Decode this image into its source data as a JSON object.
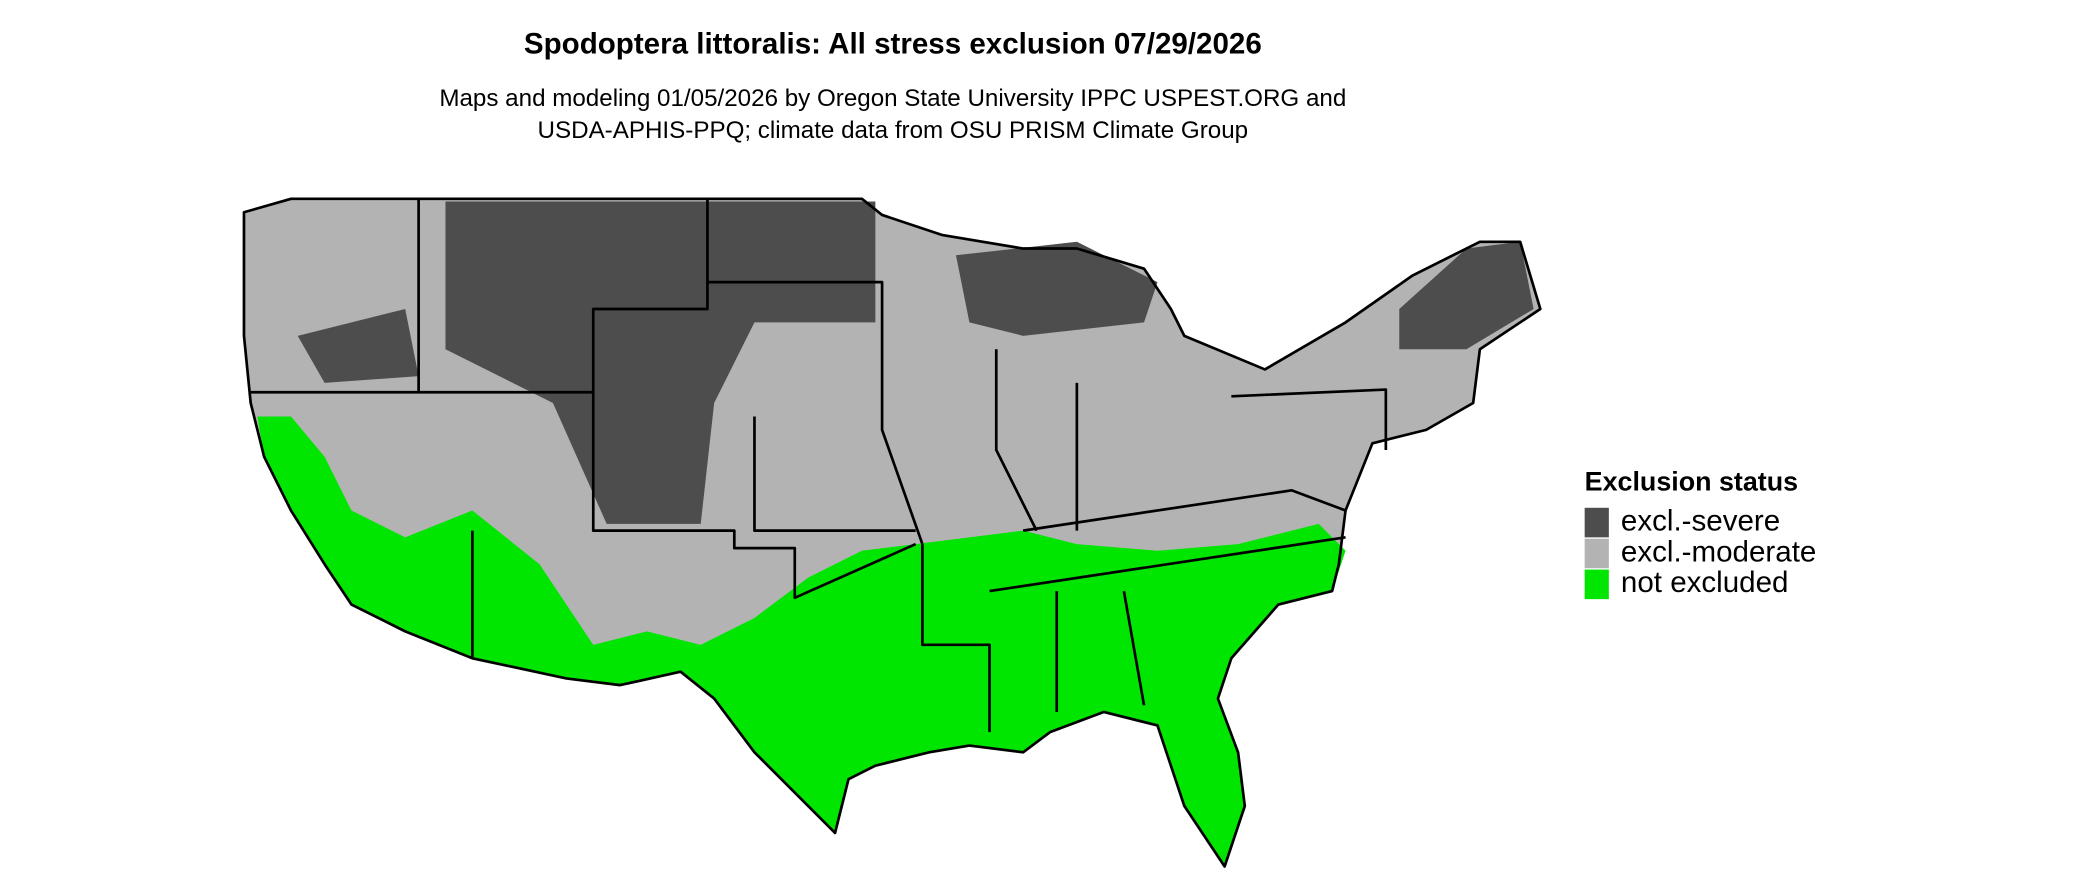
{
  "title": "Spodoptera littoralis: All stress exclusion 07/29/2026",
  "subtitle_lines": [
    "Maps and modeling 01/05/2026 by Oregon State University IPPC USPEST.ORG and",
    "USDA-APHIS-PPQ; climate data from OSU PRISM Climate Group"
  ],
  "legend": {
    "title": "Exclusion status",
    "entries": [
      {
        "label": "excl.-severe",
        "color": "#4d4d4d"
      },
      {
        "label": "excl.-moderate",
        "color": "#b3b3b3"
      },
      {
        "label": "not excluded",
        "color": "#00e600"
      }
    ]
  }
}
